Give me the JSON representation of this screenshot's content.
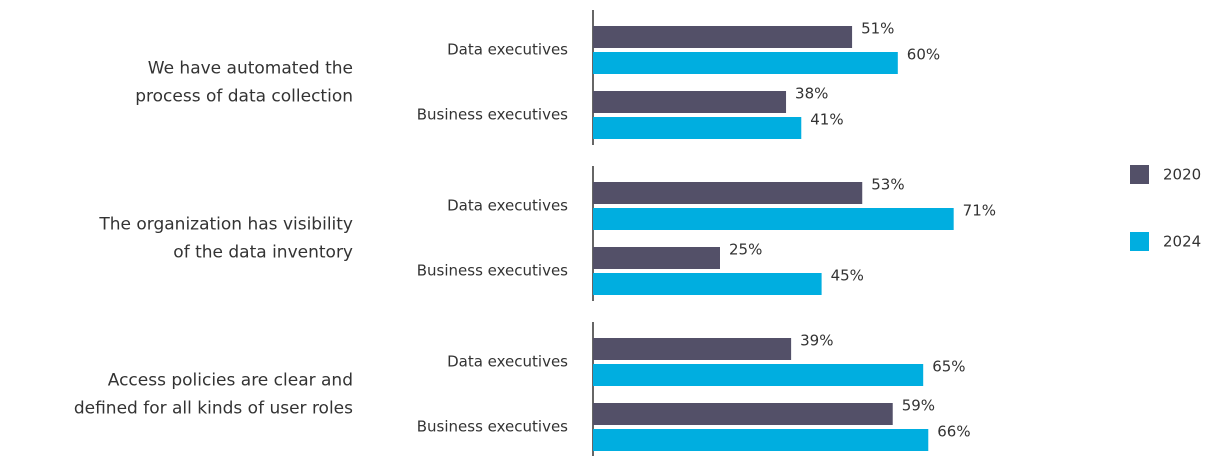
{
  "chart_data": {
    "type": "bar",
    "groups": [
      {
        "label": [
          "We have automated the",
          "process of data collection"
        ],
        "categories": [
          "Data executives",
          "Business executives"
        ]
      },
      {
        "label": [
          "The organization has visibility",
          "of the data inventory"
        ],
        "categories": [
          "Data executives",
          "Business executives"
        ]
      },
      {
        "label": [
          "Access policies are clear and",
          "defined for all kinds of user roles"
        ],
        "categories": [
          "Data executives",
          "Business executives"
        ]
      }
    ],
    "series": [
      {
        "name": "2020",
        "color": "#535068",
        "values": [
          51,
          38,
          53,
          25,
          39,
          59
        ],
        "value_labels": [
          "51%",
          "38%",
          "53%",
          "25%",
          "39%",
          "59%"
        ]
      },
      {
        "name": "2024",
        "color": "#00aee0",
        "values": [
          60,
          41,
          71,
          45,
          65,
          66
        ],
        "value_labels": [
          "60%",
          "41%",
          "71%",
          "45%",
          "65%",
          "66%"
        ]
      }
    ],
    "xlim": [
      0,
      100
    ]
  }
}
